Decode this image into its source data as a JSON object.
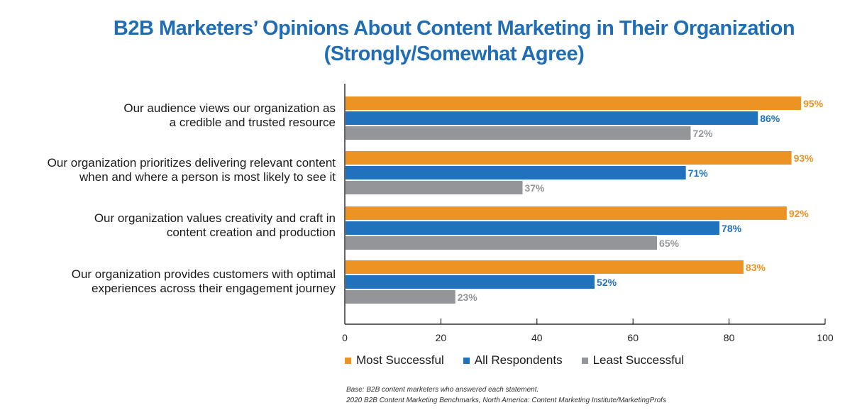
{
  "chart_data": {
    "type": "bar",
    "orientation": "horizontal",
    "title": "B2B Marketers’ Opinions About Content Marketing in Their Organization",
    "subtitle": "(Strongly/Somewhat Agree)",
    "categories": [
      [
        "Our audience views our organization as",
        "a credible and trusted resource"
      ],
      [
        "Our organization prioritizes delivering relevant content",
        "when and where a person is most likely to see it"
      ],
      [
        "Our organization values creativity and craft in",
        "content creation and production"
      ],
      [
        "Our organization provides customers with optimal",
        "experiences across their engagement journey"
      ]
    ],
    "series": [
      {
        "name": "Most Successful",
        "color": "#ec9323",
        "values": [
          95,
          93,
          92,
          83
        ],
        "labels": [
          "95%",
          "93%",
          "92%",
          "83%"
        ]
      },
      {
        "name": "All Respondents",
        "color": "#1f72bb",
        "values": [
          86,
          71,
          78,
          52
        ],
        "labels": [
          "86%",
          "71%",
          "78%",
          "52%"
        ]
      },
      {
        "name": "Least Successful",
        "color": "#939598",
        "values": [
          72,
          37,
          65,
          23
        ],
        "labels": [
          "72%",
          "37%",
          "65%",
          "23%"
        ]
      }
    ],
    "xlim": [
      0,
      100
    ],
    "xticks": [
      "0",
      "20",
      "40",
      "60",
      "80",
      "100"
    ],
    "xlabel": "",
    "ylabel": "",
    "grid": false,
    "legend_position": "bottom"
  },
  "footnote": {
    "line1": "Base: B2B content marketers who answered each statement.",
    "line2": "2020 B2B Content Marketing Benchmarks, North America: Content Marketing Institute/MarketingProfs"
  }
}
